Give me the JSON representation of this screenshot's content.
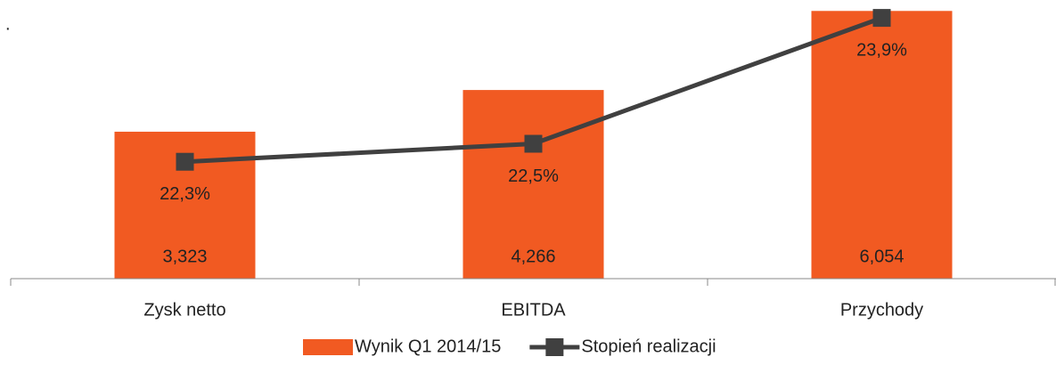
{
  "chart_data": {
    "type": "bar_line",
    "note": ".",
    "categories": [
      "Zysk netto",
      "EBITDA",
      "Przychody"
    ],
    "series": [
      {
        "name": "Wynik Q1 2014/15",
        "type": "bar",
        "color": "#f15a22",
        "values": [
          3.323,
          4.266,
          6.054
        ],
        "value_labels": [
          "3,323",
          "4,266",
          "6,054"
        ]
      },
      {
        "name": "Stopień realizacji",
        "type": "line",
        "axis": "y2",
        "color": "#404040",
        "values": [
          22.3,
          22.5,
          23.9
        ],
        "value_labels": [
          "22,3%",
          "22,5%",
          "23,9%"
        ]
      }
    ],
    "ylim": [
      0,
      6.1
    ],
    "y2lim": [
      21,
      24
    ],
    "legend": "bottom"
  }
}
